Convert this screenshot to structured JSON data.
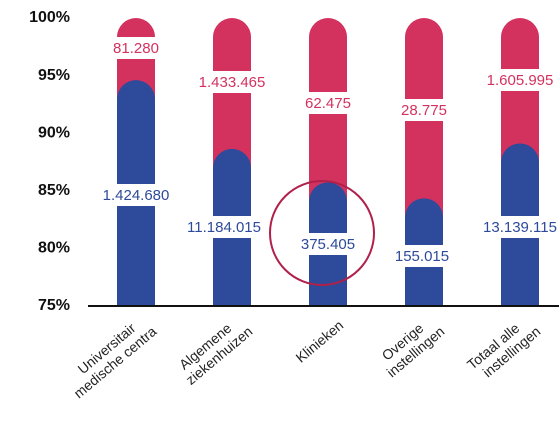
{
  "chart_data": {
    "type": "bar",
    "stacked": "percent",
    "categories": [
      [
        "Universitair",
        "medische centra"
      ],
      [
        "Algemene",
        "ziekenhuizen"
      ],
      [
        "Klinieken"
      ],
      [
        "Overige",
        "instellingen"
      ],
      [
        "Totaal alle",
        "instellingen"
      ]
    ],
    "series": [
      {
        "color": "#2e4a9a",
        "values": [
          1424680,
          11184015,
          375405,
          155015,
          13139115
        ],
        "value_labels": [
          "1.424.680",
          "11.184.015",
          "375.405",
          "155.015",
          "13.139.115"
        ]
      },
      {
        "color": "#d3325f",
        "values": [
          81280,
          1433465,
          62475,
          28775,
          1605995
        ],
        "value_labels": [
          "81.280",
          "1.433.465",
          "62.475",
          "28.775",
          "1.605.995"
        ]
      }
    ],
    "ylim": [
      75,
      100
    ],
    "yticks": [
      {
        "value": 75,
        "label": "75%"
      },
      {
        "value": 80,
        "label": "80%"
      },
      {
        "value": 85,
        "label": "85%"
      },
      {
        "value": 90,
        "label": "90%"
      },
      {
        "value": 95,
        "label": "95%"
      },
      {
        "value": 100,
        "label": "100%"
      }
    ]
  }
}
